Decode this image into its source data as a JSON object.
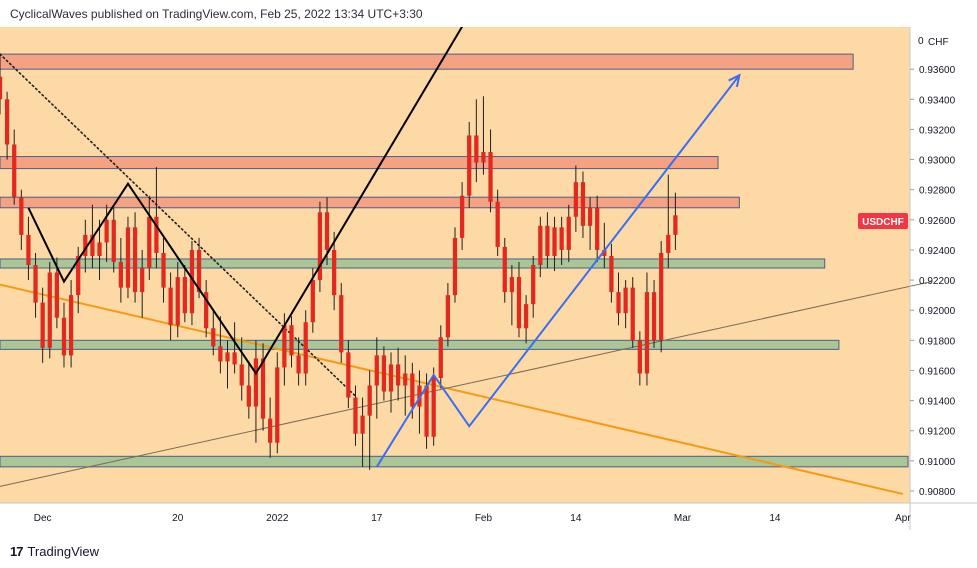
{
  "header": {
    "published_text": "CyclicalWaves published on TradingView.com, Feb 25, 2022 13:34 UTC+3:30"
  },
  "footer": {
    "logo_glyph": "17",
    "brand": "TradingView"
  },
  "colors": {
    "background": "#fdd9a6",
    "candle": "#e12a1f",
    "wick": "#1f1f1f",
    "resistance_zone": "#f4a184",
    "support_zone": "#aac596",
    "zone_border": "#4d5f8a",
    "projection_arrow": "#3b6ef0",
    "falling_channel": "#f59a12",
    "symbol_badge": "#f23645"
  },
  "chart_data": {
    "type": "candlestick",
    "symbol": "USDCHF",
    "currency": "CHF",
    "axis_top_value": "0",
    "last_price": 0.9263,
    "y_range": [
      0.9072,
      0.9388
    ],
    "x_range": [
      "2021-11-25",
      "2022-04-02"
    ],
    "y_ticks": [
      "0.90800",
      "0.91000",
      "0.91200",
      "0.91400",
      "0.91600",
      "0.91800",
      "0.92000",
      "0.92200",
      "0.92400",
      "0.92600",
      "0.92800",
      "0.93000",
      "0.93200",
      "0.93400",
      "0.93600"
    ],
    "x_ticks": [
      {
        "label": "Dec",
        "date": "2021-12-01"
      },
      {
        "label": "20",
        "date": "2021-12-20"
      },
      {
        "label": "2022",
        "date": "2022-01-03"
      },
      {
        "label": "17",
        "date": "2022-01-17"
      },
      {
        "label": "Feb",
        "date": "2022-02-01"
      },
      {
        "label": "14",
        "date": "2022-02-14"
      },
      {
        "label": "Mar",
        "date": "2022-03-01"
      },
      {
        "label": "14",
        "date": "2022-03-14"
      },
      {
        "label": "Apr",
        "date": "2022-04-01"
      }
    ],
    "zones": [
      {
        "kind": "resistance",
        "top": 0.937,
        "bottom": 0.936,
        "from": "2021-11-25",
        "to": "2022-03-25"
      },
      {
        "kind": "resistance",
        "top": 0.9302,
        "bottom": 0.9294,
        "from": "2021-11-25",
        "to": "2022-03-06"
      },
      {
        "kind": "resistance",
        "top": 0.9275,
        "bottom": 0.9268,
        "from": "2021-11-25",
        "to": "2022-03-09"
      },
      {
        "kind": "support",
        "top": 0.9234,
        "bottom": 0.9228,
        "from": "2021-11-25",
        "to": "2022-03-21"
      },
      {
        "kind": "support",
        "top": 0.918,
        "bottom": 0.9174,
        "from": "2021-11-25",
        "to": "2022-03-23"
      },
      {
        "kind": "support",
        "top": 0.9103,
        "bottom": 0.9096,
        "from": "2021-11-25",
        "to": "2022-04-03"
      }
    ],
    "trendlines": [
      {
        "name": "falling-channel-line",
        "style": "solid",
        "color": "#f59a12",
        "points": [
          [
            "2021-11-25",
            0.9217
          ],
          [
            "2022-04-01",
            0.9078
          ]
        ]
      },
      {
        "name": "rising-support-line",
        "style": "solid",
        "color": "#7a6a55",
        "points": [
          [
            "2021-11-25",
            0.9083
          ],
          [
            "2022-04-05",
            0.9219
          ]
        ]
      },
      {
        "name": "dotted-downtrend-line",
        "style": "dotted",
        "color": "#1f1f1f",
        "points": [
          [
            "2021-11-25",
            0.937
          ],
          [
            "2022-01-14",
            0.9143
          ]
        ]
      }
    ],
    "wave_path": [
      [
        "2021-11-29",
        0.9268
      ],
      [
        "2021-12-04",
        0.9219
      ],
      [
        "2021-12-13",
        0.9284
      ],
      [
        "2021-12-31",
        0.9158
      ],
      [
        "2022-02-02",
        0.942
      ]
    ],
    "projection_path": [
      [
        "2022-01-17",
        0.9096
      ],
      [
        "2022-01-25",
        0.9157
      ],
      [
        "2022-01-30",
        0.9123
      ],
      [
        "2022-03-09",
        0.9356
      ]
    ],
    "candles": [
      [
        "2021-11-25",
        0.9355,
        0.937,
        0.933,
        0.934
      ],
      [
        "2021-11-26",
        0.934,
        0.9345,
        0.93,
        0.931
      ],
      [
        "2021-11-27",
        0.931,
        0.932,
        0.927,
        0.9275
      ],
      [
        "2021-11-28",
        0.9275,
        0.928,
        0.924,
        0.925
      ],
      [
        "2021-11-29",
        0.925,
        0.9262,
        0.922,
        0.923
      ],
      [
        "2021-11-30",
        0.923,
        0.9238,
        0.9195,
        0.9205
      ],
      [
        "2021-12-01",
        0.9205,
        0.9215,
        0.9165,
        0.9175
      ],
      [
        "2021-12-02",
        0.9175,
        0.9232,
        0.9168,
        0.9225
      ],
      [
        "2021-12-03",
        0.9225,
        0.9235,
        0.9188,
        0.9195
      ],
      [
        "2021-12-04",
        0.9195,
        0.9205,
        0.9162,
        0.917
      ],
      [
        "2021-12-05",
        0.917,
        0.922,
        0.9162,
        0.921
      ],
      [
        "2021-12-06",
        0.921,
        0.9242,
        0.9198,
        0.9236
      ],
      [
        "2021-12-07",
        0.9236,
        0.926,
        0.9225,
        0.925
      ],
      [
        "2021-12-08",
        0.925,
        0.927,
        0.9228,
        0.9236
      ],
      [
        "2021-12-09",
        0.9236,
        0.926,
        0.922,
        0.9245
      ],
      [
        "2021-12-10",
        0.9245,
        0.927,
        0.9232,
        0.926
      ],
      [
        "2021-12-11",
        0.926,
        0.9268,
        0.9225,
        0.9232
      ],
      [
        "2021-12-12",
        0.9232,
        0.9248,
        0.9205,
        0.9215
      ],
      [
        "2021-12-13",
        0.9215,
        0.9262,
        0.9208,
        0.9255
      ],
      [
        "2021-12-14",
        0.9255,
        0.9265,
        0.9205,
        0.9212
      ],
      [
        "2021-12-15",
        0.9212,
        0.924,
        0.9195,
        0.9228
      ],
      [
        "2021-12-16",
        0.9228,
        0.9276,
        0.922,
        0.9262
      ],
      [
        "2021-12-17",
        0.9262,
        0.9295,
        0.9228,
        0.9238
      ],
      [
        "2021-12-18",
        0.9238,
        0.9248,
        0.9205,
        0.9215
      ],
      [
        "2021-12-19",
        0.9215,
        0.9225,
        0.918,
        0.919
      ],
      [
        "2021-12-20",
        0.919,
        0.9232,
        0.9182,
        0.9222
      ],
      [
        "2021-12-21",
        0.9222,
        0.923,
        0.9192,
        0.9198
      ],
      [
        "2021-12-22",
        0.9198,
        0.9246,
        0.919,
        0.924
      ],
      [
        "2021-12-23",
        0.924,
        0.9248,
        0.9208,
        0.9212
      ],
      [
        "2021-12-24",
        0.9212,
        0.922,
        0.9182,
        0.9188
      ],
      [
        "2021-12-25",
        0.9188,
        0.92,
        0.917,
        0.9176
      ],
      [
        "2021-12-26",
        0.9176,
        0.9196,
        0.9158,
        0.9166
      ],
      [
        "2021-12-27",
        0.9166,
        0.918,
        0.9148,
        0.9172
      ],
      [
        "2021-12-28",
        0.9172,
        0.9192,
        0.9158,
        0.9164
      ],
      [
        "2021-12-29",
        0.9164,
        0.9182,
        0.914,
        0.915
      ],
      [
        "2021-12-30",
        0.915,
        0.9166,
        0.9128,
        0.9136
      ],
      [
        "2021-12-31",
        0.9136,
        0.918,
        0.9112,
        0.9168
      ],
      [
        "2022-01-01",
        0.9168,
        0.9178,
        0.912,
        0.9128
      ],
      [
        "2022-01-02",
        0.9128,
        0.9142,
        0.9102,
        0.9112
      ],
      [
        "2022-01-03",
        0.9112,
        0.9172,
        0.9105,
        0.9162
      ],
      [
        "2022-01-04",
        0.9162,
        0.9198,
        0.915,
        0.919
      ],
      [
        "2022-01-05",
        0.919,
        0.9196,
        0.9162,
        0.917
      ],
      [
        "2022-01-06",
        0.917,
        0.9182,
        0.915,
        0.9158
      ],
      [
        "2022-01-07",
        0.9158,
        0.92,
        0.915,
        0.9192
      ],
      [
        "2022-01-08",
        0.9192,
        0.9228,
        0.9185,
        0.922
      ],
      [
        "2022-01-09",
        0.922,
        0.9272,
        0.9212,
        0.9265
      ],
      [
        "2022-01-10",
        0.9265,
        0.9275,
        0.923,
        0.924
      ],
      [
        "2022-01-11",
        0.924,
        0.9252,
        0.92,
        0.921
      ],
      [
        "2022-01-12",
        0.921,
        0.9218,
        0.9165,
        0.9172
      ],
      [
        "2022-01-13",
        0.9172,
        0.918,
        0.9135,
        0.9142
      ],
      [
        "2022-01-14",
        0.9142,
        0.915,
        0.911,
        0.9118
      ],
      [
        "2022-01-15",
        0.9118,
        0.9142,
        0.9096,
        0.913
      ],
      [
        "2022-01-16",
        0.913,
        0.916,
        0.9094,
        0.915
      ],
      [
        "2022-01-17",
        0.915,
        0.9182,
        0.9128,
        0.917
      ],
      [
        "2022-01-18",
        0.917,
        0.9176,
        0.914,
        0.9146
      ],
      [
        "2022-01-19",
        0.9146,
        0.9172,
        0.9132,
        0.9164
      ],
      [
        "2022-01-20",
        0.9164,
        0.9175,
        0.914,
        0.915
      ],
      [
        "2022-01-21",
        0.915,
        0.917,
        0.913,
        0.9158
      ],
      [
        "2022-01-22",
        0.9158,
        0.9165,
        0.9128,
        0.9136
      ],
      [
        "2022-01-23",
        0.9136,
        0.916,
        0.9118,
        0.915
      ],
      [
        "2022-01-24",
        0.915,
        0.9158,
        0.9108,
        0.9116
      ],
      [
        "2022-01-25",
        0.9116,
        0.9162,
        0.911,
        0.9155
      ],
      [
        "2022-01-26",
        0.9155,
        0.919,
        0.9148,
        0.9182
      ],
      [
        "2022-01-27",
        0.9182,
        0.9218,
        0.9176,
        0.921
      ],
      [
        "2022-01-28",
        0.921,
        0.9255,
        0.9205,
        0.9248
      ],
      [
        "2022-01-29",
        0.9248,
        0.9285,
        0.924,
        0.9276
      ],
      [
        "2022-01-30",
        0.9276,
        0.9325,
        0.9268,
        0.9316
      ],
      [
        "2022-01-31",
        0.9316,
        0.934,
        0.9285,
        0.9298
      ],
      [
        "2022-02-01",
        0.9298,
        0.9342,
        0.929,
        0.9305
      ],
      [
        "2022-02-02",
        0.9305,
        0.932,
        0.9265,
        0.9272
      ],
      [
        "2022-02-03",
        0.9272,
        0.928,
        0.9236,
        0.9242
      ],
      [
        "2022-02-04",
        0.9242,
        0.9248,
        0.9205,
        0.9212
      ],
      [
        "2022-02-05",
        0.9212,
        0.923,
        0.919,
        0.9222
      ],
      [
        "2022-02-06",
        0.9222,
        0.9232,
        0.9182,
        0.9188
      ],
      [
        "2022-02-07",
        0.9188,
        0.921,
        0.9178,
        0.9204
      ],
      [
        "2022-02-08",
        0.9204,
        0.9236,
        0.9195,
        0.923
      ],
      [
        "2022-02-09",
        0.923,
        0.9262,
        0.9222,
        0.9256
      ],
      [
        "2022-02-10",
        0.9256,
        0.9265,
        0.9228,
        0.9236
      ],
      [
        "2022-02-11",
        0.9236,
        0.9262,
        0.9226,
        0.9255
      ],
      [
        "2022-02-12",
        0.9255,
        0.9262,
        0.923,
        0.924
      ],
      [
        "2022-02-13",
        0.924,
        0.927,
        0.9232,
        0.9262
      ],
      [
        "2022-02-14",
        0.9262,
        0.9296,
        0.9252,
        0.9285
      ],
      [
        "2022-02-15",
        0.9285,
        0.9292,
        0.9248,
        0.9256
      ],
      [
        "2022-02-16",
        0.9256,
        0.9275,
        0.924,
        0.9268
      ],
      [
        "2022-02-17",
        0.9268,
        0.9276,
        0.9232,
        0.924
      ],
      [
        "2022-02-18",
        0.924,
        0.9258,
        0.9228,
        0.9236
      ],
      [
        "2022-02-19",
        0.9236,
        0.9244,
        0.9205,
        0.9212
      ],
      [
        "2022-02-20",
        0.9212,
        0.9225,
        0.919,
        0.9198
      ],
      [
        "2022-02-21",
        0.9198,
        0.922,
        0.9188,
        0.9215
      ],
      [
        "2022-02-22",
        0.9215,
        0.9222,
        0.9175,
        0.918
      ],
      [
        "2022-02-23",
        0.918,
        0.9186,
        0.915,
        0.9158
      ],
      [
        "2022-02-24",
        0.9158,
        0.9225,
        0.915,
        0.9212
      ],
      [
        "2022-02-25",
        0.9212,
        0.922,
        0.9175,
        0.918
      ],
      [
        "2022-02-26",
        0.918,
        0.9246,
        0.9172,
        0.9238
      ],
      [
        "2022-02-27",
        0.9238,
        0.929,
        0.9228,
        0.925
      ],
      [
        "2022-02-28",
        0.925,
        0.9278,
        0.924,
        0.9263
      ]
    ]
  }
}
